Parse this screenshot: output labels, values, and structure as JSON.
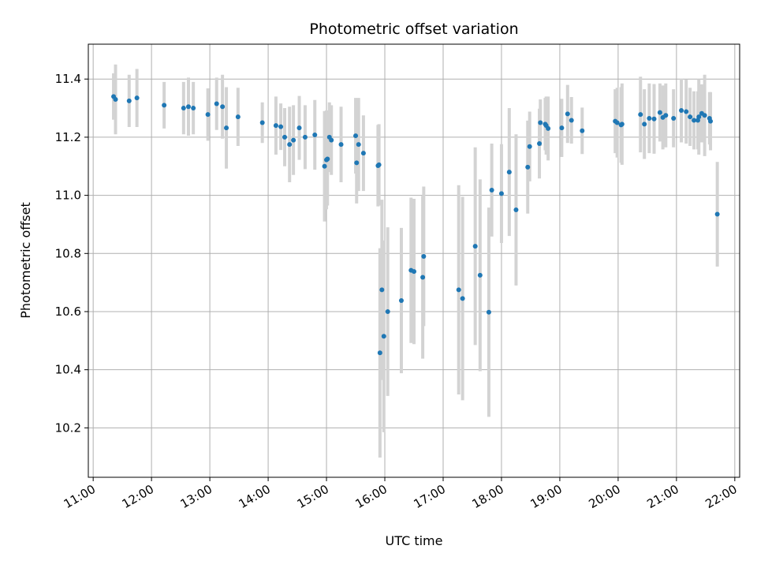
{
  "chart_data": {
    "type": "scatter",
    "title": "Photometric offset variation",
    "xlabel": "UTC time",
    "ylabel": "Photometric offset",
    "x_unit": "UTC time (HH:MM)",
    "xlim": [
      "10:55",
      "22:05"
    ],
    "ylim": [
      10.03,
      11.52
    ],
    "x_ticks": [
      "11:00",
      "12:00",
      "13:00",
      "14:00",
      "15:00",
      "16:00",
      "17:00",
      "18:00",
      "19:00",
      "20:00",
      "21:00",
      "22:00"
    ],
    "y_ticks": [
      10.2,
      10.4,
      10.6,
      10.8,
      11.0,
      11.2,
      11.4
    ],
    "grid": true,
    "marker_color": "#1f77b4",
    "errorbar_color": "#d3d3d3",
    "series": [
      {
        "x": [
          "11:21",
          "11:23",
          "11:37",
          "11:45",
          "12:13",
          "12:33",
          "12:38",
          "12:43",
          "12:58",
          "13:07",
          "13:13",
          "13:17",
          "13:29",
          "13:54",
          "14:08",
          "14:13",
          "14:17",
          "14:22",
          "14:26",
          "14:32",
          "14:38",
          "14:48",
          "14:58",
          "15:00",
          "15:01",
          "15:03",
          "15:05",
          "15:15",
          "15:30",
          "15:31",
          "15:33",
          "15:38",
          "15:53",
          "15:54",
          "15:55",
          "15:57",
          "15:59",
          "16:03",
          "16:17",
          "16:27",
          "16:30",
          "16:39",
          "16:40",
          "17:16",
          "17:20",
          "17:33",
          "17:38",
          "17:47",
          "17:50",
          "18:00",
          "18:08",
          "18:15",
          "18:27",
          "18:29",
          "18:39",
          "18:40",
          "18:45",
          "18:46",
          "18:48",
          "19:02",
          "19:08",
          "19:12",
          "19:23",
          "19:57",
          "19:59",
          "20:03",
          "20:04",
          "20:23",
          "20:27",
          "20:32",
          "20:37",
          "20:43",
          "20:46",
          "20:49",
          "20:57",
          "21:05",
          "21:10",
          "21:14",
          "21:18",
          "21:22",
          "21:23",
          "21:26",
          "21:29",
          "21:34",
          "21:35",
          "21:42"
        ],
        "y": [
          11.34,
          11.33,
          11.325,
          11.335,
          11.31,
          11.3,
          11.305,
          11.3,
          11.278,
          11.315,
          11.305,
          11.232,
          11.27,
          11.25,
          11.24,
          11.236,
          11.2,
          11.175,
          11.19,
          11.232,
          11.2,
          11.208,
          11.1,
          11.122,
          11.125,
          11.2,
          11.19,
          11.175,
          11.205,
          11.112,
          11.175,
          11.145,
          11.102,
          11.105,
          10.458,
          10.675,
          10.515,
          10.6,
          10.638,
          10.742,
          10.738,
          10.718,
          10.79,
          10.675,
          10.645,
          10.825,
          10.725,
          10.598,
          11.018,
          11.006,
          11.08,
          10.95,
          11.097,
          11.168,
          11.178,
          11.25,
          11.245,
          11.24,
          11.23,
          11.232,
          11.28,
          11.258,
          11.222,
          11.255,
          11.25,
          11.242,
          11.245,
          11.278,
          11.245,
          11.265,
          11.263,
          11.285,
          11.268,
          11.275,
          11.265,
          11.292,
          11.288,
          11.27,
          11.258,
          11.258,
          11.27,
          11.282,
          11.275,
          11.265,
          11.255,
          10.935
        ],
        "yerr": [
          0.08,
          0.12,
          0.09,
          0.1,
          0.08,
          0.09,
          0.1,
          0.09,
          0.09,
          0.09,
          0.11,
          0.14,
          0.1,
          0.07,
          0.1,
          0.08,
          0.1,
          0.13,
          0.12,
          0.11,
          0.11,
          0.12,
          0.19,
          0.17,
          0.16,
          0.12,
          0.12,
          0.13,
          0.13,
          0.14,
          0.16,
          0.13,
          0.14,
          0.14,
          0.36,
          0.31,
          0.33,
          0.29,
          0.25,
          0.25,
          0.25,
          0.28,
          0.24,
          0.36,
          0.35,
          0.34,
          0.33,
          0.36,
          0.16,
          0.17,
          0.22,
          0.26,
          0.16,
          0.12,
          0.12,
          0.08,
          0.09,
          0.1,
          0.11,
          0.1,
          0.1,
          0.08,
          0.08,
          0.11,
          0.12,
          0.13,
          0.14,
          0.13,
          0.12,
          0.12,
          0.12,
          0.1,
          0.11,
          0.11,
          0.1,
          0.11,
          0.11,
          0.1,
          0.1,
          0.1,
          0.13,
          0.1,
          0.14,
          0.09,
          0.1,
          0.18
        ]
      }
    ]
  }
}
